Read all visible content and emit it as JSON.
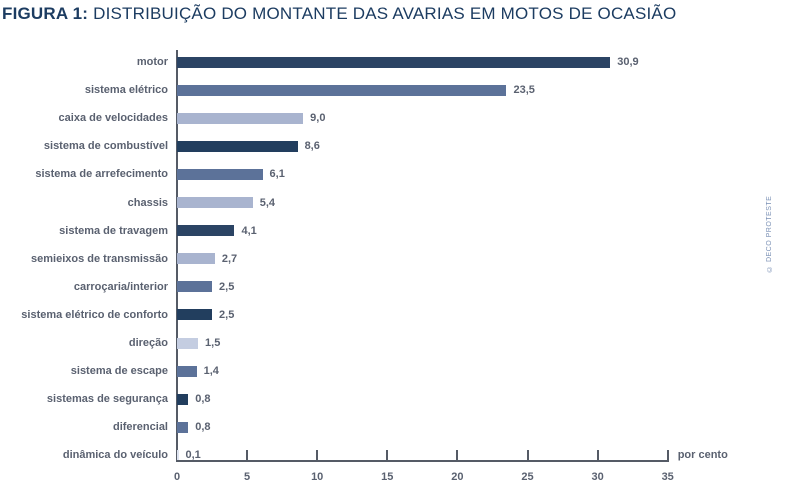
{
  "figure": {
    "title_prefix": "FIGURA 1:",
    "title_text": " DISTRIBUIÇÃO DO MONTANTE DAS AVARIAS EM MOTOS DE OCASIÃO",
    "unit_label": "por cento",
    "watermark": "© DECO PROTESTE"
  },
  "colors": {
    "title": "#1C3C61",
    "text": "#5A6170",
    "axis": "#555B66"
  },
  "chart_data": {
    "type": "bar",
    "orientation": "horizontal",
    "title": "FIGURA 1: DISTRIBUIÇÃO DO MONTANTE DAS AVARIAS EM MOTOS DE OCASIÃO",
    "xlabel": "por cento",
    "xlim": [
      0,
      35
    ],
    "xticks": [
      0,
      5,
      10,
      15,
      20,
      25,
      30,
      35
    ],
    "grid": false,
    "legend": false,
    "categories": [
      "motor",
      "sistema elétrico",
      "caixa de velocidades",
      "sistema de combustível",
      "sistema de arrefecimento",
      "chassis",
      "sistema de travagem",
      "semieixos de transmissão",
      "carroçaria/interior",
      "sistema elétrico de conforto",
      "direção",
      "sistema de escape",
      "sistemas de segurança",
      "diferencial",
      "dinâmica do veículo"
    ],
    "values": [
      30.9,
      23.5,
      9.0,
      8.6,
      6.1,
      5.4,
      4.1,
      2.7,
      2.5,
      2.5,
      1.5,
      1.4,
      0.8,
      0.8,
      0.1
    ],
    "value_labels": [
      "30,9",
      "23,5",
      "9,0",
      "8,6",
      "6,1",
      "5,4",
      "4,1",
      "2,7",
      "2,5",
      "2,5",
      "1,5",
      "1,4",
      "0,8",
      "0,8",
      "0,1"
    ],
    "bar_colors": [
      "#2B4464",
      "#5C7299",
      "#A9B4CF",
      "#223E5E",
      "#5C7299",
      "#A9B4CF",
      "#2B4464",
      "#A9B4CF",
      "#5C7299",
      "#223E5E",
      "#C4CDE1",
      "#5C7299",
      "#223E5E",
      "#5C7299",
      "#DDE3F0"
    ]
  }
}
